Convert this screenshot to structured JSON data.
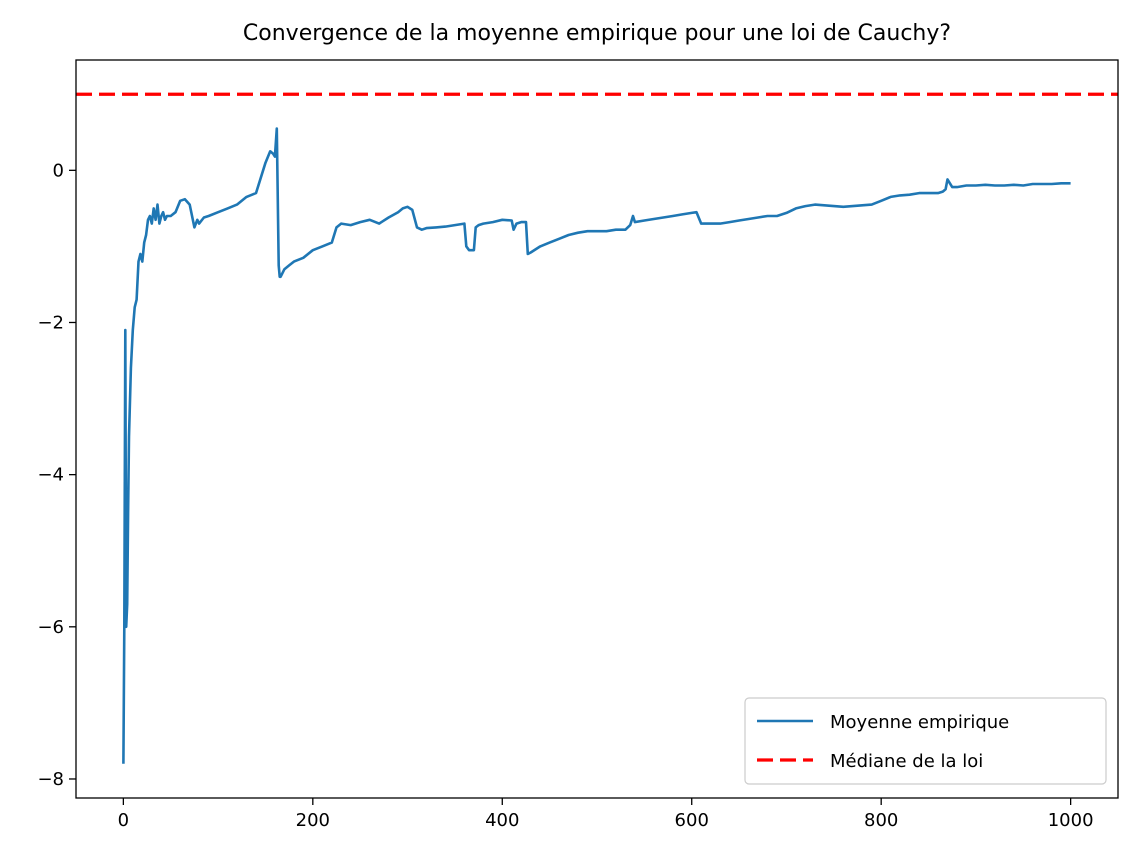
{
  "chart_data": {
    "type": "line",
    "title": "Convergence de la moyenne empirique pour une loi de Cauchy?",
    "xlabel": "",
    "ylabel": "",
    "xlim": [
      -50,
      1050
    ],
    "ylim": [
      -8.25,
      1.45
    ],
    "xticks": [
      0,
      200,
      400,
      600,
      800,
      1000
    ],
    "xtick_labels": [
      "0",
      "200",
      "400",
      "600",
      "800",
      "1000"
    ],
    "yticks": [
      0,
      -2,
      -4,
      -6,
      -8
    ],
    "ytick_labels": [
      "0",
      "−2",
      "−4",
      "−6",
      "−8"
    ],
    "grid": false,
    "legend_position": "lower-right",
    "series": [
      {
        "name": "Moyenne empirique",
        "color": "#1f77b4",
        "style": "solid",
        "x": [
          0,
          1,
          2,
          3,
          4,
          5,
          6,
          8,
          10,
          12,
          14,
          16,
          18,
          20,
          22,
          24,
          26,
          28,
          30,
          32,
          34,
          36,
          38,
          40,
          42,
          44,
          46,
          50,
          55,
          60,
          65,
          70,
          75,
          78,
          80,
          85,
          90,
          100,
          110,
          120,
          130,
          140,
          150,
          155,
          158,
          160,
          162,
          164,
          165,
          166,
          170,
          175,
          180,
          190,
          200,
          210,
          220,
          225,
          230,
          240,
          250,
          260,
          270,
          280,
          290,
          295,
          300,
          305,
          310,
          315,
          320,
          330,
          340,
          350,
          360,
          362,
          365,
          370,
          372,
          375,
          380,
          390,
          400,
          410,
          412,
          415,
          420,
          425,
          427,
          430,
          440,
          450,
          460,
          470,
          480,
          490,
          500,
          510,
          520,
          530,
          535,
          538,
          540,
          550,
          560,
          570,
          580,
          590,
          600,
          605,
          610,
          620,
          630,
          640,
          650,
          660,
          670,
          680,
          690,
          700,
          710,
          720,
          730,
          740,
          750,
          760,
          770,
          780,
          790,
          800,
          810,
          820,
          830,
          840,
          850,
          860,
          865,
          868,
          870,
          875,
          880,
          890,
          900,
          910,
          920,
          930,
          940,
          950,
          960,
          970,
          980,
          990,
          1000
        ],
        "values": [
          -7.8,
          -6.0,
          -2.1,
          -6.0,
          -5.7,
          -4.5,
          -3.5,
          -2.6,
          -2.1,
          -1.8,
          -1.7,
          -1.2,
          -1.1,
          -1.2,
          -0.95,
          -0.85,
          -0.65,
          -0.6,
          -0.7,
          -0.5,
          -0.65,
          -0.45,
          -0.7,
          -0.6,
          -0.55,
          -0.65,
          -0.6,
          -0.6,
          -0.55,
          -0.4,
          -0.38,
          -0.45,
          -0.75,
          -0.65,
          -0.7,
          -0.62,
          -0.6,
          -0.55,
          -0.5,
          -0.45,
          -0.35,
          -0.3,
          0.1,
          0.25,
          0.22,
          0.18,
          0.55,
          -1.25,
          -1.4,
          -1.4,
          -1.3,
          -1.25,
          -1.2,
          -1.15,
          -1.05,
          -1.0,
          -0.95,
          -0.75,
          -0.7,
          -0.72,
          -0.68,
          -0.65,
          -0.7,
          -0.62,
          -0.55,
          -0.5,
          -0.48,
          -0.52,
          -0.75,
          -0.78,
          -0.76,
          -0.75,
          -0.74,
          -0.72,
          -0.7,
          -1.0,
          -1.05,
          -1.05,
          -0.75,
          -0.72,
          -0.7,
          -0.68,
          -0.65,
          -0.66,
          -0.78,
          -0.7,
          -0.68,
          -0.68,
          -1.1,
          -1.08,
          -1.0,
          -0.95,
          -0.9,
          -0.85,
          -0.82,
          -0.8,
          -0.8,
          -0.8,
          -0.78,
          -0.78,
          -0.72,
          -0.6,
          -0.68,
          -0.66,
          -0.64,
          -0.62,
          -0.6,
          -0.58,
          -0.56,
          -0.55,
          -0.7,
          -0.7,
          -0.7,
          -0.68,
          -0.66,
          -0.64,
          -0.62,
          -0.6,
          -0.6,
          -0.56,
          -0.5,
          -0.47,
          -0.45,
          -0.46,
          -0.47,
          -0.48,
          -0.47,
          -0.46,
          -0.45,
          -0.4,
          -0.35,
          -0.33,
          -0.32,
          -0.3,
          -0.3,
          -0.3,
          -0.28,
          -0.25,
          -0.12,
          -0.22,
          -0.22,
          -0.2,
          -0.2,
          -0.19,
          -0.2,
          -0.2,
          -0.19,
          -0.2,
          -0.18,
          -0.18,
          -0.18,
          -0.17,
          -0.17
        ]
      },
      {
        "name": "Médiane de la loi",
        "color": "#ff0000",
        "style": "dashed",
        "constant": 1.0
      }
    ]
  }
}
